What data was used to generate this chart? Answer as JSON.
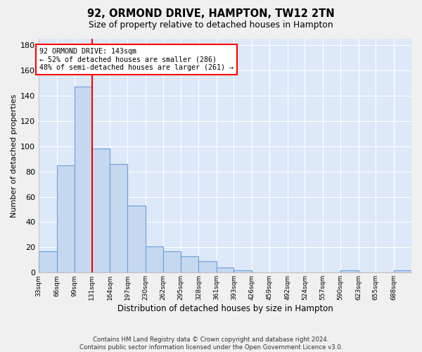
{
  "title": "92, ORMOND DRIVE, HAMPTON, TW12 2TN",
  "subtitle": "Size of property relative to detached houses in Hampton",
  "xlabel": "Distribution of detached houses by size in Hampton",
  "ylabel": "Number of detached properties",
  "bar_color": "#c5d8f0",
  "bar_edge_color": "#6a9fd8",
  "background_color": "#dde8f8",
  "grid_color": "#ffffff",
  "vline_color": "red",
  "annotation_text": "92 ORMOND DRIVE: 143sqm\n← 52% of detached houses are smaller (286)\n48% of semi-detached houses are larger (261) →",
  "annotation_box_color": "white",
  "annotation_box_edge": "red",
  "bin_edges": [
    33,
    66,
    99,
    131,
    164,
    197,
    230,
    262,
    295,
    328,
    361,
    393,
    426,
    459,
    492,
    524,
    557,
    590,
    623,
    655,
    688,
    721
  ],
  "bin_labels": [
    "33sqm",
    "66sqm",
    "99sqm",
    "131sqm",
    "164sqm",
    "197sqm",
    "230sqm",
    "262sqm",
    "295sqm",
    "328sqm",
    "361sqm",
    "393sqm",
    "426sqm",
    "459sqm",
    "492sqm",
    "524sqm",
    "557sqm",
    "590sqm",
    "623sqm",
    "655sqm",
    "688sqm"
  ],
  "values": [
    17,
    85,
    147,
    98,
    86,
    53,
    21,
    17,
    13,
    9,
    4,
    2,
    0,
    0,
    0,
    0,
    0,
    2,
    0,
    0,
    2
  ],
  "vline_bin_index": 3,
  "ylim": [
    0,
    185
  ],
  "yticks": [
    0,
    20,
    40,
    60,
    80,
    100,
    120,
    140,
    160,
    180
  ],
  "footnote": "Contains HM Land Registry data © Crown copyright and database right 2024.\nContains public sector information licensed under the Open Government Licence v3.0.",
  "fig_bg_color": "#f0f0f0"
}
